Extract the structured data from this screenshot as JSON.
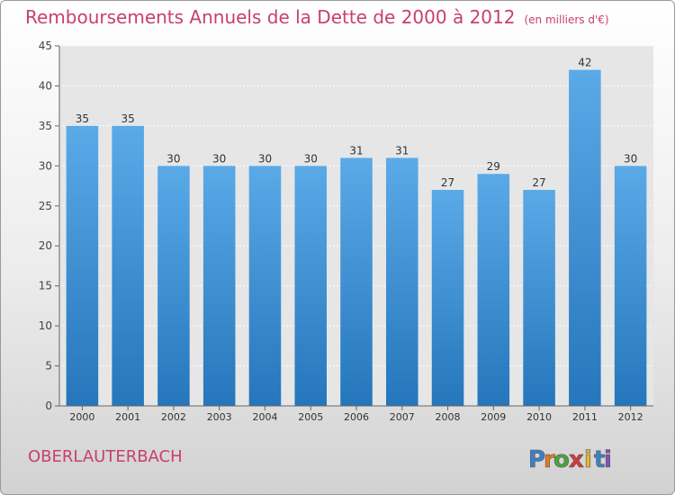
{
  "header": {
    "title": "Remboursements Annuels de la Dette de 2000 à 2012",
    "unit_note": "(en milliers d'€)"
  },
  "footer": {
    "commune": "OBERLAUTERBACH",
    "logo_text": "Proxiti",
    "logo_letters": [
      {
        "char": "P",
        "color": "#3d7fc4"
      },
      {
        "char": "r",
        "color": "#e07a23"
      },
      {
        "char": "o",
        "color": "#4aa43c"
      },
      {
        "char": "x",
        "color": "#d23a3a"
      },
      {
        "char": "i",
        "color": "#e8b82a"
      },
      {
        "char": "t",
        "color": "#3d7fc4"
      },
      {
        "char": "i",
        "color": "#8a4fb0"
      }
    ]
  },
  "colors": {
    "bar_top": "#5aaae8",
    "bar_bottom": "#2576bb",
    "title": "#c8406e",
    "axis": "#555555"
  },
  "chart_data": {
    "type": "bar",
    "title": "Remboursements Annuels de la Dette de 2000 à 2012",
    "xlabel": "",
    "ylabel": "",
    "categories": [
      "2000",
      "2001",
      "2002",
      "2003",
      "2004",
      "2005",
      "2006",
      "2007",
      "2008",
      "2009",
      "2010",
      "2011",
      "2012"
    ],
    "values": [
      35,
      35,
      30,
      30,
      30,
      30,
      31,
      31,
      27,
      29,
      27,
      42,
      30
    ],
    "ylim": [
      0,
      45
    ],
    "yticks": [
      0,
      5,
      10,
      15,
      20,
      25,
      30,
      35,
      40,
      45
    ],
    "grid": true,
    "legend": "none"
  }
}
